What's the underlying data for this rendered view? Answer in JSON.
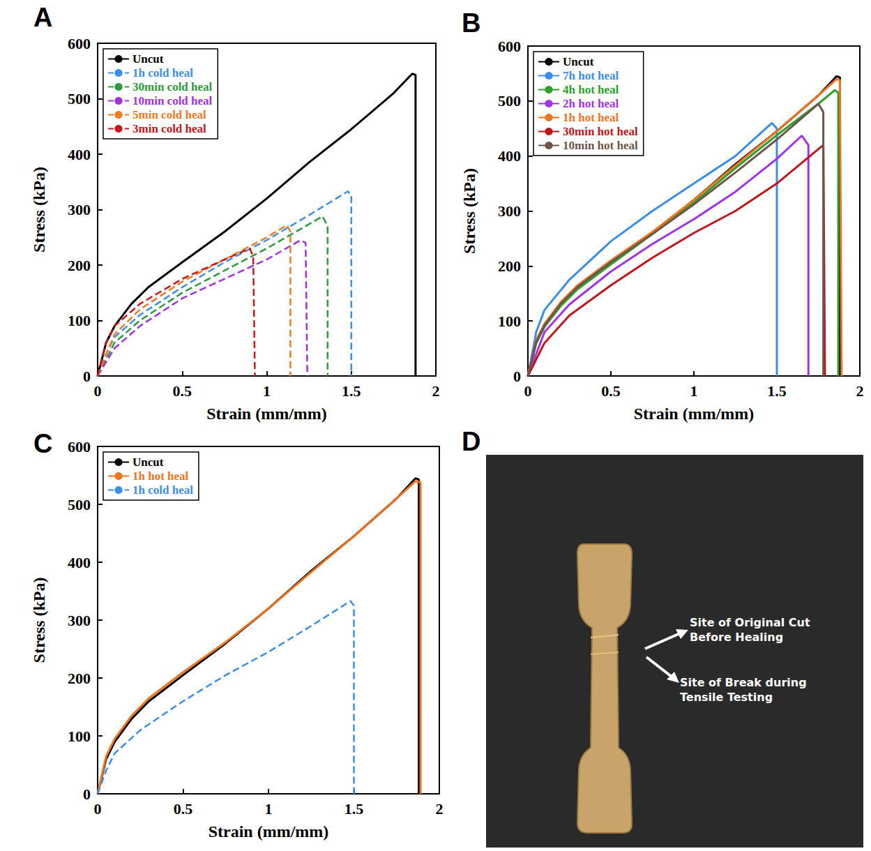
{
  "chart_data": [
    {
      "panel": "A",
      "type": "line",
      "x_label": "Strain (mm/mm)",
      "y_label": "Stress (kPa)",
      "xlim": [
        0,
        2
      ],
      "ylim": [
        0,
        600
      ],
      "xticks": [
        0,
        0.5,
        1,
        1.5,
        2
      ],
      "yticks": [
        0,
        100,
        200,
        300,
        400,
        500,
        600
      ],
      "grid": false,
      "legend": "top-left",
      "series": [
        {
          "name": "Uncut",
          "color": "#000000",
          "line_style": "solid",
          "x": [
            0,
            0.05,
            0.1,
            0.2,
            0.3,
            0.5,
            0.75,
            1.0,
            1.25,
            1.5,
            1.75,
            1.86,
            1.88,
            1.88
          ],
          "values": [
            0,
            60,
            90,
            130,
            160,
            205,
            260,
            320,
            385,
            445,
            510,
            545,
            543,
            0
          ]
        },
        {
          "name": "1h cold heal",
          "color": "#3d8ee6",
          "line_style": "dashed",
          "x": [
            0,
            0.05,
            0.1,
            0.25,
            0.5,
            0.75,
            1.0,
            1.25,
            1.48,
            1.5,
            1.5
          ],
          "values": [
            0,
            40,
            70,
            110,
            160,
            205,
            245,
            290,
            333,
            325,
            0
          ]
        },
        {
          "name": "30min cold heal",
          "color": "#2b9a3c",
          "line_style": "dashed",
          "x": [
            0,
            0.1,
            0.25,
            0.5,
            0.75,
            1.0,
            1.2,
            1.33,
            1.36,
            1.36
          ],
          "values": [
            0,
            60,
            100,
            150,
            190,
            230,
            265,
            288,
            270,
            0
          ]
        },
        {
          "name": "10min cold heal",
          "color": "#a030e0",
          "line_style": "dashed",
          "x": [
            0,
            0.1,
            0.25,
            0.5,
            0.75,
            1.0,
            1.2,
            1.23,
            1.24
          ],
          "values": [
            0,
            50,
            90,
            140,
            175,
            210,
            245,
            240,
            0
          ]
        },
        {
          "name": "5min cold heal",
          "color": "#f07a1e",
          "line_style": "dashed",
          "x": [
            0,
            0.1,
            0.25,
            0.5,
            0.75,
            1.0,
            1.12,
            1.14,
            1.14
          ],
          "values": [
            0,
            75,
            120,
            170,
            210,
            250,
            272,
            260,
            0
          ]
        },
        {
          "name": "3min cold heal",
          "color": "#c8161d",
          "line_style": "dashed",
          "x": [
            0,
            0.05,
            0.1,
            0.25,
            0.5,
            0.75,
            0.9,
            0.92,
            0.93
          ],
          "values": [
            0,
            60,
            90,
            130,
            175,
            210,
            230,
            215,
            0
          ]
        }
      ]
    },
    {
      "panel": "B",
      "type": "line",
      "x_label": "Strain (mm/mm)",
      "y_label": "Stress (kPa)",
      "xlim": [
        0,
        2
      ],
      "ylim": [
        0,
        600
      ],
      "xticks": [
        0,
        0.5,
        1,
        1.5,
        2
      ],
      "yticks": [
        0,
        100,
        200,
        300,
        400,
        500,
        600
      ],
      "grid": false,
      "legend": "top-left",
      "series": [
        {
          "name": "Uncut",
          "color": "#000000",
          "line_style": "solid",
          "x": [
            0,
            0.05,
            0.1,
            0.2,
            0.3,
            0.5,
            0.75,
            1.0,
            1.25,
            1.5,
            1.75,
            1.86,
            1.88,
            1.88
          ],
          "values": [
            0,
            60,
            90,
            130,
            160,
            205,
            260,
            320,
            385,
            445,
            510,
            545,
            543,
            0
          ]
        },
        {
          "name": "7h hot heal",
          "color": "#3b8ee8",
          "line_style": "solid",
          "x": [
            0,
            0.05,
            0.1,
            0.25,
            0.5,
            0.75,
            1.0,
            1.25,
            1.47,
            1.5,
            1.5
          ],
          "values": [
            0,
            80,
            120,
            175,
            245,
            300,
            350,
            400,
            460,
            450,
            0
          ]
        },
        {
          "name": "4h hot heal",
          "color": "#2ca02c",
          "line_style": "solid",
          "x": [
            0,
            0.05,
            0.1,
            0.2,
            0.3,
            0.5,
            0.75,
            1.0,
            1.25,
            1.5,
            1.75,
            1.85,
            1.87,
            1.87
          ],
          "values": [
            0,
            60,
            90,
            128,
            158,
            203,
            258,
            315,
            378,
            438,
            495,
            520,
            515,
            0
          ]
        },
        {
          "name": "2h hot heal",
          "color": "#a033e8",
          "line_style": "solid",
          "x": [
            0,
            0.1,
            0.25,
            0.5,
            0.75,
            1.0,
            1.25,
            1.5,
            1.65,
            1.69,
            1.69
          ],
          "values": [
            0,
            80,
            130,
            190,
            240,
            285,
            335,
            395,
            437,
            420,
            0
          ]
        },
        {
          "name": "1h hot heal",
          "color": "#f0731e",
          "line_style": "solid",
          "x": [
            0,
            0.05,
            0.1,
            0.2,
            0.3,
            0.5,
            0.75,
            1.0,
            1.25,
            1.5,
            1.75,
            1.86,
            1.88,
            1.89
          ],
          "values": [
            0,
            65,
            95,
            135,
            165,
            210,
            262,
            320,
            383,
            445,
            510,
            540,
            538,
            0
          ]
        },
        {
          "name": "30min hot heal",
          "color": "#c0161b",
          "line_style": "solid",
          "x": [
            0,
            0.1,
            0.25,
            0.5,
            0.75,
            1.0,
            1.25,
            1.5,
            1.78,
            1.79
          ],
          "values": [
            0,
            60,
            110,
            165,
            215,
            260,
            300,
            350,
            420,
            0
          ]
        },
        {
          "name": "10min hot heal",
          "color": "#6d5549",
          "line_style": "solid",
          "x": [
            0,
            0.05,
            0.1,
            0.2,
            0.3,
            0.5,
            0.75,
            1.0,
            1.25,
            1.5,
            1.75,
            1.78,
            1.78
          ],
          "values": [
            0,
            62,
            92,
            132,
            162,
            207,
            258,
            312,
            370,
            430,
            495,
            480,
            0
          ]
        }
      ]
    },
    {
      "panel": "C",
      "type": "line",
      "x_label": "Strain (mm/mm)",
      "y_label": "Stress (kPa)",
      "xlim": [
        0,
        2
      ],
      "ylim": [
        0,
        600
      ],
      "xticks": [
        0,
        0.5,
        1,
        1.5,
        2
      ],
      "yticks": [
        0,
        100,
        200,
        300,
        400,
        500,
        600
      ],
      "grid": false,
      "legend": "top-left",
      "series": [
        {
          "name": "Uncut",
          "color": "#000000",
          "line_style": "solid",
          "x": [
            0,
            0.05,
            0.1,
            0.2,
            0.3,
            0.5,
            0.75,
            1.0,
            1.25,
            1.5,
            1.75,
            1.86,
            1.88,
            1.88
          ],
          "values": [
            0,
            60,
            90,
            130,
            160,
            205,
            260,
            320,
            385,
            445,
            510,
            545,
            543,
            0
          ]
        },
        {
          "name": "1h hot heal",
          "color": "#f0731e",
          "line_style": "solid",
          "x": [
            0,
            0.05,
            0.1,
            0.2,
            0.3,
            0.5,
            0.75,
            1.0,
            1.25,
            1.5,
            1.75,
            1.86,
            1.89,
            1.89
          ],
          "values": [
            0,
            65,
            95,
            135,
            165,
            210,
            262,
            320,
            383,
            445,
            510,
            540,
            538,
            0
          ]
        },
        {
          "name": "1h cold heal",
          "color": "#3d8ee6",
          "line_style": "dashed",
          "x": [
            0,
            0.05,
            0.1,
            0.25,
            0.5,
            0.75,
            1.0,
            1.25,
            1.48,
            1.5,
            1.5
          ],
          "values": [
            0,
            40,
            70,
            110,
            160,
            205,
            245,
            290,
            333,
            325,
            0
          ]
        }
      ]
    }
  ],
  "photo": {
    "panel": "D",
    "annotations": [
      "Site of Original Cut Before Healing",
      "Site of Break during Tensile Testing"
    ]
  }
}
